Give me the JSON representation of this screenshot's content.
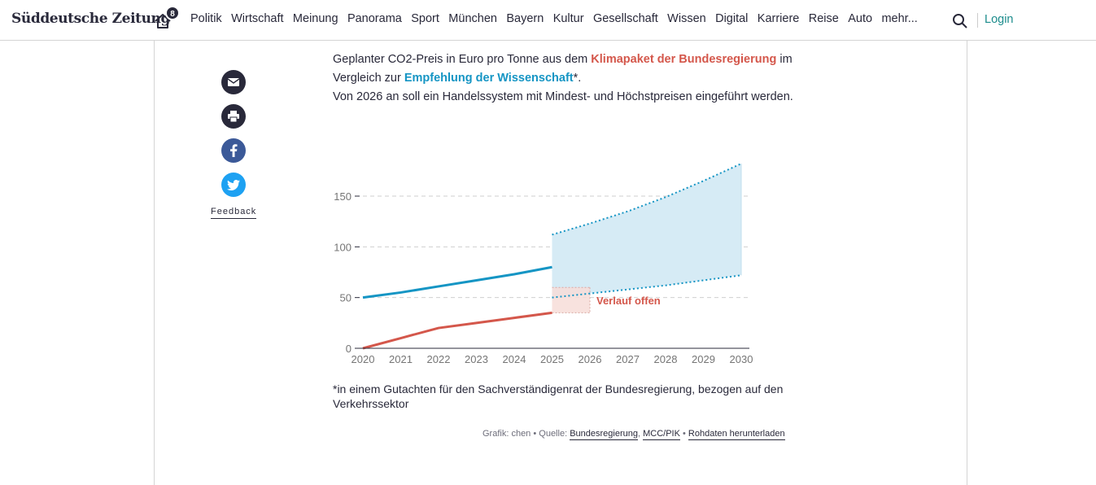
{
  "header": {
    "logo": "Süddeutsche Zeitung",
    "notification_count": "8",
    "nav": [
      "Politik",
      "Wirtschaft",
      "Meinung",
      "Panorama",
      "Sport",
      "München",
      "Bayern",
      "Kultur",
      "Gesellschaft",
      "Wissen",
      "Digital",
      "Karriere",
      "Reise",
      "Auto",
      "mehr..."
    ],
    "login": "Login"
  },
  "share": {
    "feedback": "Feedback",
    "colors": {
      "mail": "#29293a",
      "print": "#29293a",
      "facebook": "#3b5998",
      "twitter": "#1da1f2"
    }
  },
  "intro": {
    "part1": "Geplanter CO2-Preis in Euro pro Tonne aus dem ",
    "red": "Klimapaket der Bundesregierung",
    "part2": " im Vergleich zur ",
    "blue": "Empfehlung der Wissenschaft",
    "part3": "*.",
    "line2": "Von 2026 an soll ein Handelssystem mit Mindest- und Höchstpreisen eingeführt werden."
  },
  "footnote": "*in einem Gutachten für den Sachverständigenrat der Bundesregierung, bezogen auf den Verkehrssektor",
  "source": {
    "prefix": "Grafik: chen • Quelle: ",
    "link1": "Bundesregierung",
    "comma": ", ",
    "link2": "MCC/PIK",
    "bullet": " • ",
    "link3": "Rohdaten herunterladen"
  },
  "chart_data": {
    "type": "line",
    "x": [
      2020,
      2021,
      2022,
      2023,
      2024,
      2025,
      2026,
      2027,
      2028,
      2029,
      2030
    ],
    "xlim": [
      2020,
      2030
    ],
    "ylim": [
      0,
      150
    ],
    "yticks": [
      0,
      50,
      100,
      150
    ],
    "xticks": [
      "2020",
      "2021",
      "2022",
      "2023",
      "2024",
      "2025",
      "2026",
      "2027",
      "2028",
      "2029",
      "2030"
    ],
    "grid": "horizontal dashed",
    "colors": {
      "government": "#d4574b",
      "science": "#1595c4",
      "band": "#d6ebf5",
      "open": "#f7ddd8"
    },
    "series": [
      {
        "key": "government",
        "x": [
          2020,
          2021,
          2022,
          2023,
          2024,
          2025
        ],
        "values": [
          0,
          10,
          20,
          25,
          30,
          35
        ]
      },
      {
        "key": "science",
        "x": [
          2020,
          2021,
          2022,
          2023,
          2024,
          2025
        ],
        "values": [
          50,
          55,
          61,
          67,
          73,
          80
        ]
      }
    ],
    "science_range": {
      "x": [
        2025,
        2026,
        2027,
        2028,
        2029,
        2030
      ],
      "upper": [
        112,
        123,
        135,
        149,
        165,
        182
      ],
      "lower": [
        50,
        54,
        58,
        62,
        67,
        72
      ]
    },
    "open_range": {
      "x_from": 2025,
      "x_to": 2026,
      "low": 35,
      "high": 60,
      "label": "Verlauf offen"
    }
  }
}
